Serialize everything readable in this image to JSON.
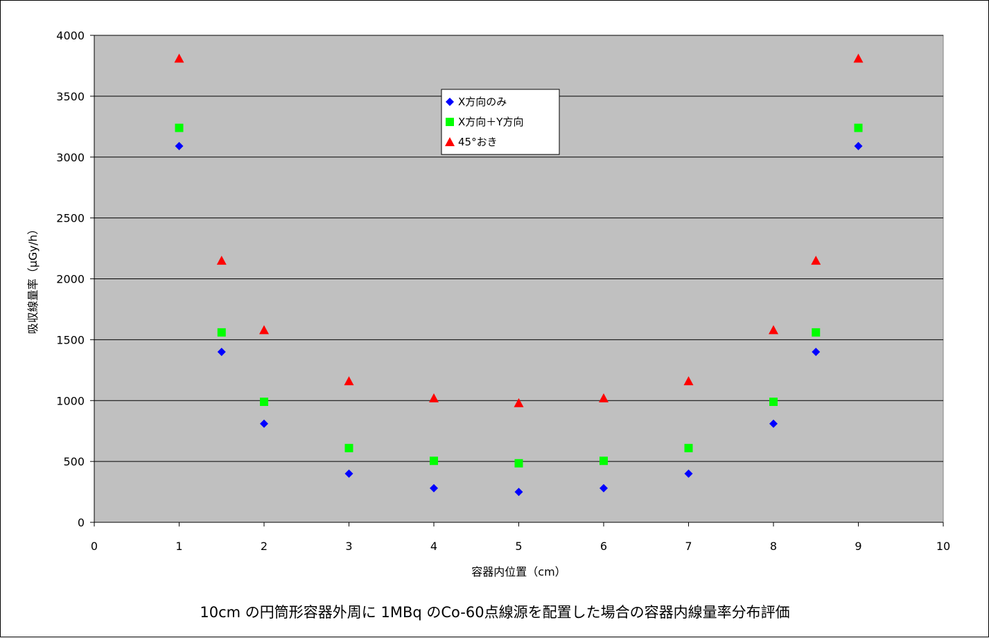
{
  "chart_data": {
    "type": "scatter",
    "xlabel": "容器内位置（cm）",
    "ylabel": "吸収線量率（μGy/h）",
    "caption": "10cm の円筒形容器外周に 1MBq のCo-60点線源を配置した場合の容器内線量率分布評価",
    "xlim": [
      0,
      10
    ],
    "ylim": [
      0,
      4000
    ],
    "xticks": [
      0,
      1,
      2,
      3,
      4,
      5,
      6,
      7,
      8,
      9,
      10
    ],
    "yticks": [
      0,
      500,
      1000,
      1500,
      2000,
      2500,
      3000,
      3500,
      4000
    ],
    "grid": "horizontal",
    "legend_position": "top-center",
    "plot_background": "#c0c0c0",
    "series": [
      {
        "name": "X方向のみ",
        "marker": "diamond",
        "color": "#0000ff",
        "points": [
          [
            1,
            3090
          ],
          [
            1.5,
            1400
          ],
          [
            2,
            810
          ],
          [
            3,
            400
          ],
          [
            4,
            280
          ],
          [
            5,
            250
          ],
          [
            6,
            280
          ],
          [
            7,
            400
          ],
          [
            8,
            810
          ],
          [
            8.5,
            1400
          ],
          [
            9,
            3090
          ]
        ]
      },
      {
        "name": "X方向＋Y方向",
        "marker": "square",
        "color": "#00ff00",
        "points": [
          [
            1,
            3240
          ],
          [
            1.5,
            1560
          ],
          [
            2,
            990
          ],
          [
            3,
            610
          ],
          [
            4,
            505
          ],
          [
            5,
            485
          ],
          [
            6,
            505
          ],
          [
            7,
            610
          ],
          [
            8,
            990
          ],
          [
            8.5,
            1560
          ],
          [
            9,
            3240
          ]
        ]
      },
      {
        "name": "45°おき",
        "marker": "triangle",
        "color": "#ff0000",
        "points": [
          [
            1,
            3810
          ],
          [
            1.5,
            2150
          ],
          [
            2,
            1580
          ],
          [
            3,
            1160
          ],
          [
            4,
            1020
          ],
          [
            5,
            980
          ],
          [
            6,
            1020
          ],
          [
            7,
            1160
          ],
          [
            8,
            1580
          ],
          [
            8.5,
            2150
          ],
          [
            9,
            3810
          ]
        ]
      }
    ]
  }
}
